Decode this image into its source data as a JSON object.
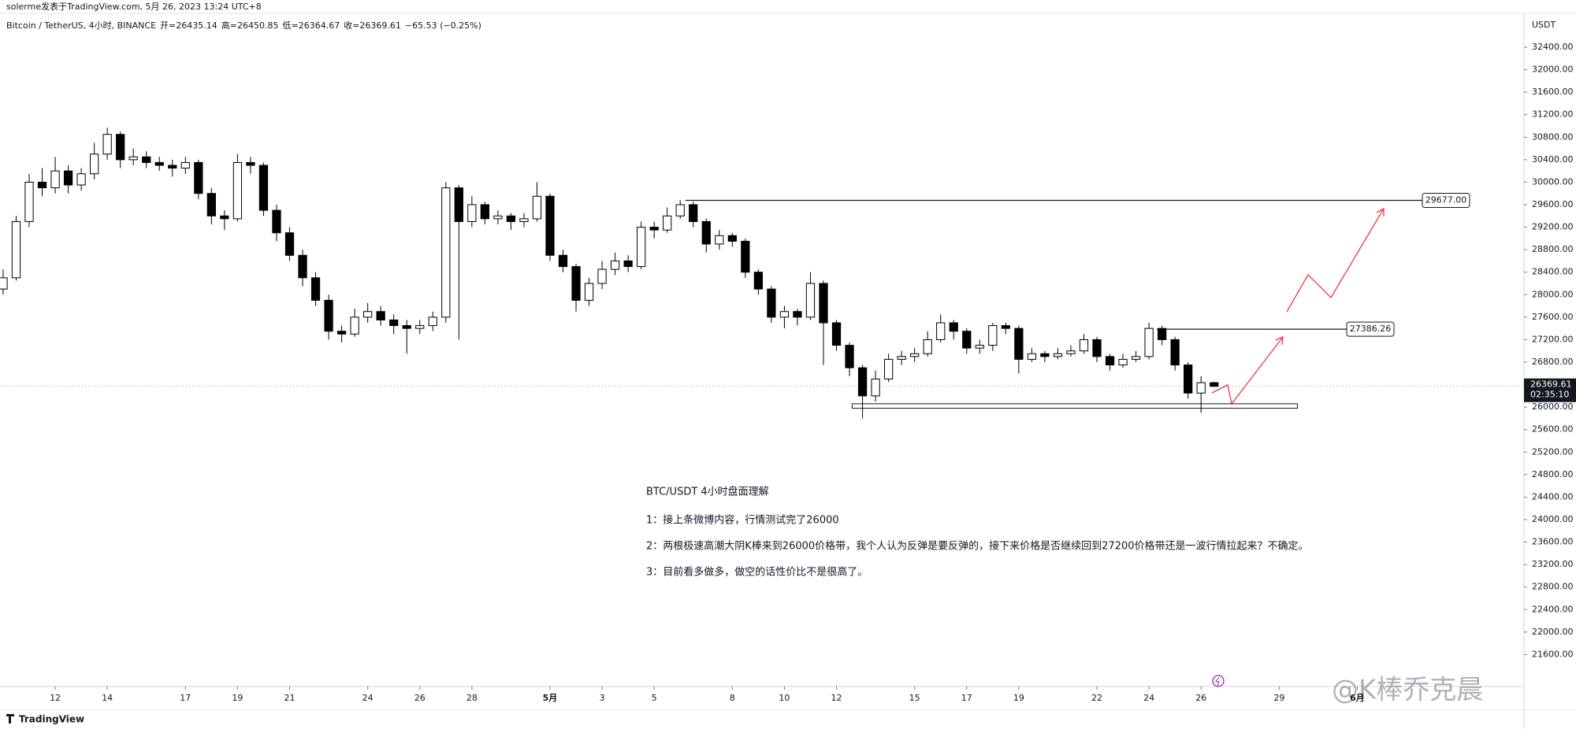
{
  "chart_data": {
    "type": "candlestick",
    "author_line": "solerme发表于TradingView.com, 5月 26, 2023 13:24 UTC+8",
    "symbol": "Bitcoin / TetherUS, 4小时, BINANCE",
    "ohlc_labels": [
      "开=",
      "高=",
      "低=",
      "收="
    ],
    "change_label": "−65.53 (−0.25%)",
    "currency": "USDT",
    "countdown": "02:35:10",
    "brand": "TradingView",
    "watermark": "@K棒乔克晨",
    "up_color": "#ffffff",
    "down_color": "#000000",
    "wick_color": "#000000",
    "xlim": [
      -2.12,
      56.4
    ],
    "ylim": [
      21032,
      33002
    ],
    "xticks": [
      {
        "value": 0,
        "label": "12"
      },
      {
        "value": 2,
        "label": "14"
      },
      {
        "value": 5,
        "label": "17"
      },
      {
        "value": 7,
        "label": "19"
      },
      {
        "value": 9,
        "label": "21"
      },
      {
        "value": 12,
        "label": "24"
      },
      {
        "value": 14,
        "label": "26"
      },
      {
        "value": 16,
        "label": "28"
      },
      {
        "value": 19,
        "label": "5月"
      },
      {
        "value": 21,
        "label": "3"
      },
      {
        "value": 23,
        "label": "5"
      },
      {
        "value": 26,
        "label": "8"
      },
      {
        "value": 28,
        "label": "10"
      },
      {
        "value": 30,
        "label": "12"
      },
      {
        "value": 33,
        "label": "15"
      },
      {
        "value": 35,
        "label": "17"
      },
      {
        "value": 37,
        "label": "19"
      },
      {
        "value": 40,
        "label": "22"
      },
      {
        "value": 42,
        "label": "24"
      },
      {
        "value": 44,
        "label": "26"
      },
      {
        "value": 47,
        "label": "29"
      },
      {
        "value": 50,
        "label": "6月"
      }
    ],
    "yticks": [
      {
        "value": 21600,
        "label": "21600.00"
      },
      {
        "value": 22000,
        "label": "22000.00"
      },
      {
        "value": 22400,
        "label": "22400.00"
      },
      {
        "value": 22800,
        "label": "22800.00"
      },
      {
        "value": 23200,
        "label": "23200.00"
      },
      {
        "value": 23600,
        "label": "23600.00"
      },
      {
        "value": 24000,
        "label": "24000.00"
      },
      {
        "value": 24400,
        "label": "24400.00"
      },
      {
        "value": 24800,
        "label": "24800.00"
      },
      {
        "value": 25200,
        "label": "25200.00"
      },
      {
        "value": 25600,
        "label": "25600.00"
      },
      {
        "value": 26000,
        "label": "26000.00"
      },
      {
        "value": 26800,
        "label": "26800.00"
      },
      {
        "value": 27200,
        "label": "27200.00"
      },
      {
        "value": 27600,
        "label": "27600.00"
      },
      {
        "value": 28000,
        "label": "28000.00"
      },
      {
        "value": 28400,
        "label": "28400.00"
      },
      {
        "value": 28800,
        "label": "28800.00"
      },
      {
        "value": 29200,
        "label": "29200.00"
      },
      {
        "value": 29600,
        "label": "29600.00"
      },
      {
        "value": 30000,
        "label": "30000.00"
      },
      {
        "value": 30400,
        "label": "30400.00"
      },
      {
        "value": 30800,
        "label": "30800.00"
      },
      {
        "value": 31200,
        "label": "31200.00"
      },
      {
        "value": 31600,
        "label": "31600.00"
      },
      {
        "value": 32000,
        "label": "32000.00"
      },
      {
        "value": 32400,
        "label": "32400.00"
      }
    ],
    "x": [
      -2,
      -1.5,
      -1,
      -0.5,
      0,
      0.5,
      1,
      1.5,
      2,
      2.5,
      3,
      3.5,
      4,
      4.5,
      5,
      5.5,
      6,
      6.5,
      7,
      7.5,
      8,
      8.5,
      9,
      9.5,
      10,
      10.5,
      11,
      11.5,
      12,
      12.5,
      13,
      13.5,
      14,
      14.5,
      15,
      15.5,
      16,
      16.5,
      17,
      17.5,
      18,
      18.5,
      19,
      19.5,
      20,
      20.5,
      21,
      21.5,
      22,
      22.5,
      23,
      23.5,
      24,
      24.5,
      25,
      25.5,
      26,
      26.5,
      27,
      27.5,
      28,
      28.5,
      29,
      29.5,
      30,
      30.5,
      31,
      31.5,
      32,
      32.5,
      33,
      33.5,
      34,
      34.5,
      35,
      35.5,
      36,
      36.5,
      37,
      37.5,
      38,
      38.5,
      39,
      39.5,
      40,
      40.5,
      41,
      41.5,
      42,
      42.5,
      43,
      43.5,
      44,
      44.5
    ],
    "open": [
      28100,
      28300,
      29300,
      30000,
      29900,
      30200,
      29950,
      30150,
      30500,
      30850,
      30400,
      30450,
      30350,
      30300,
      30250,
      30350,
      29800,
      29400,
      29350,
      30350,
      30300,
      29500,
      29100,
      28700,
      28300,
      27900,
      27350,
      27300,
      27600,
      27700,
      27550,
      27450,
      27400,
      27450,
      27600,
      29900,
      29300,
      29600,
      29350,
      29400,
      29300,
      29350,
      29750,
      28700,
      28500,
      27900,
      28200,
      28450,
      28600,
      28500,
      29200,
      29150,
      29400,
      29600,
      29300,
      28900,
      29050,
      28950,
      28400,
      28100,
      27600,
      27700,
      27600,
      28200,
      27500,
      27100,
      26700,
      26200,
      26500,
      26850,
      26900,
      26950,
      27200,
      27500,
      27350,
      27050,
      27100,
      27450,
      27400,
      26850,
      26950,
      26900,
      26950,
      27000,
      27200,
      26900,
      26750,
      26850,
      26900,
      27400,
      27200,
      26750,
      26250,
      26435.14
    ],
    "high": [
      28450,
      29400,
      30150,
      30250,
      30450,
      30300,
      30250,
      30700,
      30970,
      30900,
      30600,
      30550,
      30450,
      30400,
      30450,
      30400,
      29900,
      29500,
      30500,
      30450,
      30350,
      29600,
      29200,
      28800,
      28400,
      28000,
      27450,
      27750,
      27850,
      27800,
      27650,
      27550,
      27550,
      27700,
      30000,
      29950,
      29750,
      29650,
      29500,
      29450,
      29450,
      30000,
      29800,
      28800,
      28550,
      28300,
      28600,
      28750,
      28700,
      29300,
      29300,
      29550,
      29680,
      29650,
      29350,
      29150,
      29100,
      29000,
      28450,
      28150,
      27800,
      27750,
      28400,
      28250,
      27550,
      27150,
      26750,
      26650,
      26950,
      27000,
      27050,
      27350,
      27650,
      27550,
      27400,
      27200,
      27500,
      27500,
      27450,
      27050,
      27000,
      27050,
      27100,
      27300,
      27250,
      26950,
      26950,
      27000,
      27500,
      27450,
      27250,
      26800,
      26550,
      26450.85
    ],
    "low": [
      28000,
      28250,
      29200,
      29750,
      29800,
      29800,
      29850,
      30050,
      30400,
      30250,
      30300,
      30250,
      30200,
      30100,
      30150,
      29700,
      29250,
      29150,
      29300,
      30150,
      29400,
      28950,
      28600,
      28150,
      27800,
      27200,
      27150,
      27250,
      27500,
      27450,
      27300,
      26950,
      27300,
      27350,
      27500,
      27200,
      29200,
      29250,
      29250,
      29150,
      29200,
      29300,
      28600,
      28400,
      27700,
      27800,
      28100,
      28350,
      28400,
      28450,
      29000,
      29100,
      29350,
      29200,
      28750,
      28800,
      28850,
      28300,
      28000,
      27500,
      27400,
      27450,
      27550,
      26750,
      27000,
      26550,
      25800,
      26100,
      26450,
      26750,
      26800,
      26900,
      27150,
      27200,
      26950,
      26950,
      27000,
      27300,
      26600,
      26800,
      26800,
      26850,
      26900,
      26950,
      26800,
      26650,
      26700,
      26800,
      26850,
      27100,
      26650,
      26150,
      25900,
      26364.67
    ],
    "close": [
      28300,
      29300,
      30000,
      29900,
      30200,
      29950,
      30150,
      30500,
      30850,
      30400,
      30450,
      30350,
      30300,
      30250,
      30350,
      29800,
      29400,
      29350,
      30350,
      30300,
      29500,
      29100,
      28700,
      28300,
      27900,
      27350,
      27300,
      27600,
      27700,
      27550,
      27450,
      27400,
      27450,
      27600,
      29900,
      29300,
      29600,
      29350,
      29400,
      29300,
      29350,
      29750,
      28700,
      28500,
      27900,
      28200,
      28450,
      28600,
      28500,
      29200,
      29150,
      29400,
      29600,
      29300,
      28900,
      29050,
      28950,
      28400,
      28100,
      27600,
      27700,
      27600,
      28200,
      27500,
      27100,
      26700,
      26200,
      26500,
      26850,
      26900,
      26950,
      27200,
      27500,
      27350,
      27050,
      27100,
      27450,
      27400,
      26850,
      26950,
      26900,
      26950,
      27000,
      27200,
      26900,
      26750,
      26850,
      26900,
      27400,
      27200,
      26750,
      26250,
      26435.14,
      26369.61
    ],
    "levels": [
      {
        "value": 29677,
        "label": "29677.00",
        "x_start": 24.2
      },
      {
        "value": 27386.26,
        "label": "27386.26",
        "x_start": 42.3
      }
    ],
    "zone": {
      "low": 25980,
      "high": 26060,
      "x_start": 30.6,
      "x_end": 47.7
    },
    "annotations": [
      "BTC/USDT 4小时盘面理解",
      "1：接上条微博内容，行情测试完了26000",
      "2：两根极速高潮大阴K棒来到26000价格带，我个人认为反弹是要反弹的，接下来价格是否继续回到27200价格带还是一波行情拉起来？不确定。",
      "3：目前看多做多，做空的话性价比不是很高了。"
    ]
  }
}
